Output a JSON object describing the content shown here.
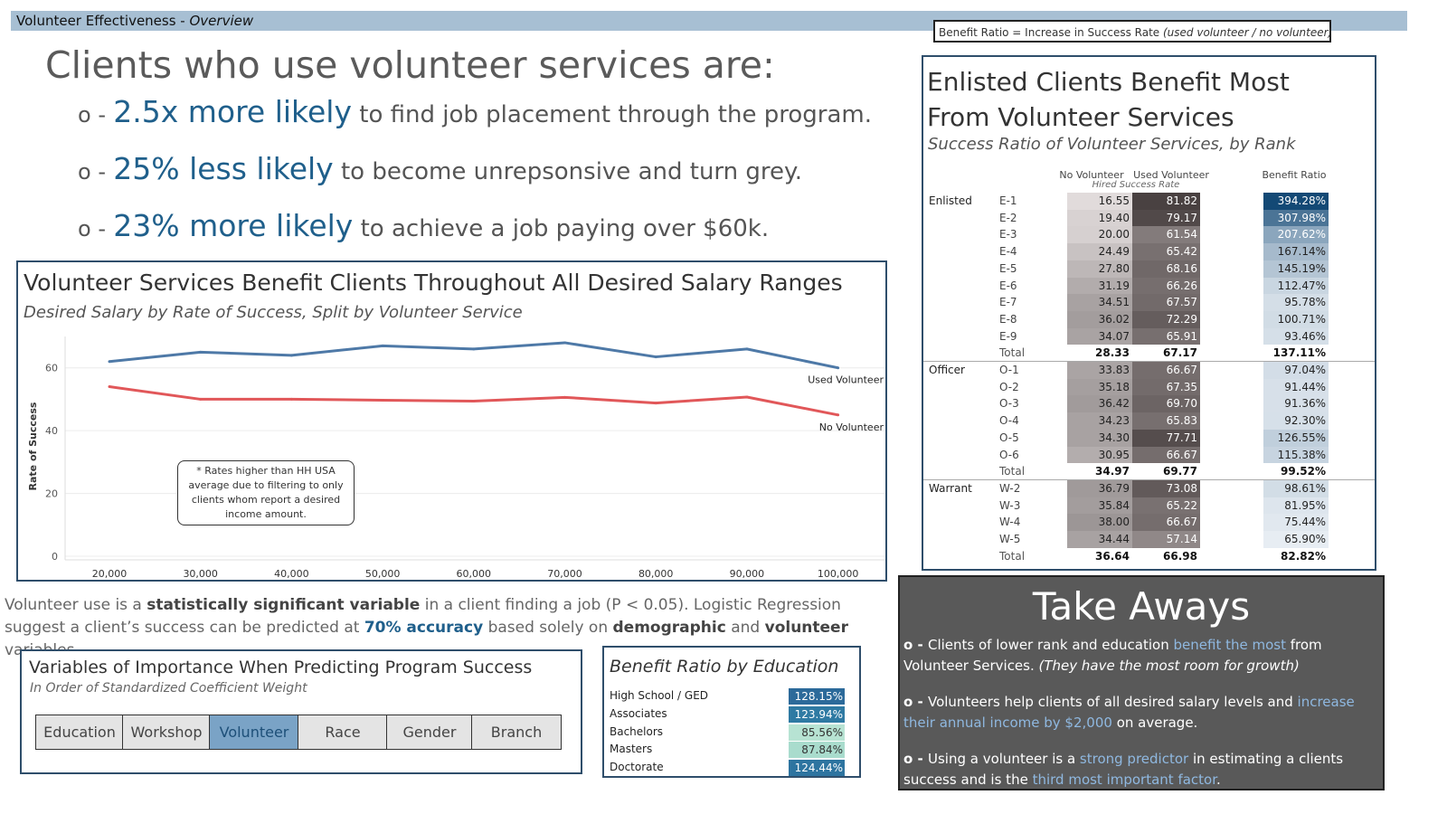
{
  "header": {
    "title": "Volunteer Effectiveness - ",
    "title_italic": "Overview"
  },
  "ratio_definition": {
    "prefix": "Benefit Ratio =  Increase in Success Rate ",
    "italic": "(used volunteer / no volunteer)"
  },
  "headline": "Clients who use volunteer services are:",
  "stats": [
    {
      "bullet": "o -",
      "highlight": "2.5x more likely",
      "rest": " to find job placement through the program."
    },
    {
      "bullet": "o -",
      "highlight": "25% less likely",
      "rest": " to become unrepsonsive and turn grey."
    },
    {
      "bullet": "o -",
      "highlight": "23% more likely",
      "rest": " to achieve a job paying over $60k."
    }
  ],
  "line_chart": {
    "title": "Volunteer Services Benefit Clients Throughout All Desired Salary Ranges",
    "subtitle": "Desired Salary by Rate of Success, Split by Volunteer Service",
    "note": "*  Rates higher than HH USA average due to filtering to only clients whom report a desired income amount."
  },
  "chart_data": {
    "type": "line",
    "x": [
      "20,000",
      "30,000",
      "40,000",
      "50,000",
      "60,000",
      "70,000",
      "80,000",
      "90,000",
      "100,000"
    ],
    "ylabel": "Rate of Success",
    "ylim": [
      0,
      70
    ],
    "yticks": [
      0,
      20,
      40,
      60
    ],
    "grid": true,
    "series": [
      {
        "name": "Used Volunteer",
        "color": "#4e79a7",
        "values": [
          62,
          65,
          64,
          67,
          66,
          68,
          63.5,
          66,
          60
        ]
      },
      {
        "name": "No Volunteer",
        "color": "#e15759",
        "values": [
          54,
          50,
          50,
          49.7,
          49.4,
          50.6,
          48.8,
          50.7,
          45
        ]
      }
    ]
  },
  "paragraph": {
    "p1": "Volunteer use is a ",
    "b1": "statistically significant variable",
    "p2": " in a client finding a job (P < 0.05). Logistic Regression suggest a client’s success can be predicted at ",
    "b2": "70% accuracy",
    "p3": " based solely on ",
    "b3": "demographic",
    "p4": " and ",
    "b4": "volunteer",
    "p5": " variables."
  },
  "variables": {
    "title": "Variables of Importance When Predicting Program Success",
    "subtitle": "In Order of  Standardized Coefficient Weight",
    "items": [
      "Education",
      "Workshop",
      "Volunteer",
      "Race",
      "Gender",
      "Branch"
    ],
    "selected": "Volunteer"
  },
  "education": {
    "title": "Benefit Ratio by Education",
    "rows": [
      {
        "label": "High School / GED",
        "value": "128.15%",
        "bg": "#2c6a9a",
        "fg": "#ffffff"
      },
      {
        "label": "Associates",
        "value": "123.94%",
        "bg": "#2f7aa3",
        "fg": "#ffffff"
      },
      {
        "label": "Bachelors",
        "value": "85.56%",
        "bg": "#b7e3d3",
        "fg": "#333333"
      },
      {
        "label": "Masters",
        "value": "87.84%",
        "bg": "#a9dccd",
        "fg": "#333333"
      },
      {
        "label": "Doctorate",
        "value": "124.44%",
        "bg": "#2d74a0",
        "fg": "#ffffff"
      }
    ]
  },
  "takeaways": {
    "title": "Take Aways",
    "items": [
      {
        "bullet": "o - ",
        "a": "Clients of lower rank and education ",
        "hl": "benefit the most",
        "b": " from Volunteer Services. ",
        "it": "(They have the most room for growth)"
      },
      {
        "bullet": "o - ",
        "a": "Volunteers help clients of all desired salary levels and ",
        "hl": "increase their annual income by $2,000",
        "b": " on average.",
        "it": ""
      },
      {
        "bullet": "o - ",
        "a": "Using a volunteer is a ",
        "hl": "strong predictor",
        "b": " in estimating a clients success and is the ",
        "hl2": "third most important factor",
        "c": "."
      }
    ]
  },
  "rank_table": {
    "title_line1": "Enlisted Clients Benefit Most",
    "title_line2": "From Volunteer Services",
    "subtitle": "Success Ratio of Volunteer Services, by Rank",
    "col_no": "No Volunteer",
    "col_used": "Used Volunteer",
    "col_sub": "Hired Success Rate",
    "col_ratio": "Benefit Ratio",
    "groups": [
      {
        "name": "Enlisted",
        "rows": [
          {
            "rank": "E-1",
            "no": "16.55",
            "used": "81.82",
            "ratio": "394.28%"
          },
          {
            "rank": "E-2",
            "no": "19.40",
            "used": "79.17",
            "ratio": "307.98%"
          },
          {
            "rank": "E-3",
            "no": "20.00",
            "used": "61.54",
            "ratio": "207.62%"
          },
          {
            "rank": "E-4",
            "no": "24.49",
            "used": "65.42",
            "ratio": "167.14%"
          },
          {
            "rank": "E-5",
            "no": "27.80",
            "used": "68.16",
            "ratio": "145.19%"
          },
          {
            "rank": "E-6",
            "no": "31.19",
            "used": "66.26",
            "ratio": "112.47%"
          },
          {
            "rank": "E-7",
            "no": "34.51",
            "used": "67.57",
            "ratio": "95.78%"
          },
          {
            "rank": "E-8",
            "no": "36.02",
            "used": "72.29",
            "ratio": "100.71%"
          },
          {
            "rank": "E-9",
            "no": "34.07",
            "used": "65.91",
            "ratio": "93.46%"
          }
        ],
        "total": {
          "rank": "Total",
          "no": "28.33",
          "used": "67.17",
          "ratio": "137.11%"
        }
      },
      {
        "name": "Officer",
        "rows": [
          {
            "rank": "O-1",
            "no": "33.83",
            "used": "66.67",
            "ratio": "97.04%"
          },
          {
            "rank": "O-2",
            "no": "35.18",
            "used": "67.35",
            "ratio": "91.44%"
          },
          {
            "rank": "O-3",
            "no": "36.42",
            "used": "69.70",
            "ratio": "91.36%"
          },
          {
            "rank": "O-4",
            "no": "34.23",
            "used": "65.83",
            "ratio": "92.30%"
          },
          {
            "rank": "O-5",
            "no": "34.30",
            "used": "77.71",
            "ratio": "126.55%"
          },
          {
            "rank": "O-6",
            "no": "30.95",
            "used": "66.67",
            "ratio": "115.38%"
          }
        ],
        "total": {
          "rank": "Total",
          "no": "34.97",
          "used": "69.77",
          "ratio": "99.52%"
        }
      },
      {
        "name": "Warrant",
        "rows": [
          {
            "rank": "W-2",
            "no": "36.79",
            "used": "73.08",
            "ratio": "98.61%"
          },
          {
            "rank": "W-3",
            "no": "35.84",
            "used": "65.22",
            "ratio": "81.95%"
          },
          {
            "rank": "W-4",
            "no": "38.00",
            "used": "66.67",
            "ratio": "75.44%"
          },
          {
            "rank": "W-5",
            "no": "34.44",
            "used": "57.14",
            "ratio": "65.90%"
          }
        ],
        "total": {
          "rank": "Total",
          "no": "36.64",
          "used": "66.98",
          "ratio": "82.82%"
        }
      }
    ]
  }
}
